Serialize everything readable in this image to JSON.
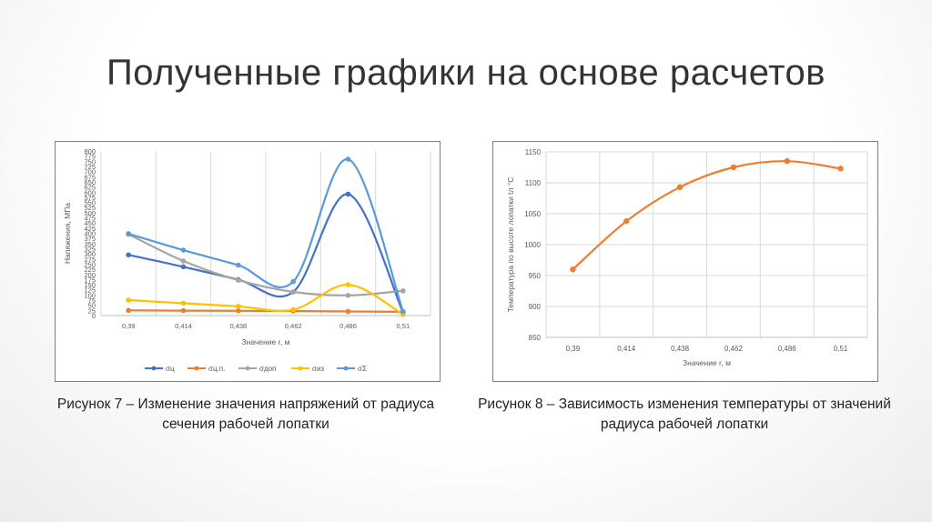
{
  "slide": {
    "title": "Полученные графики на основе расчетов"
  },
  "captions": {
    "fig7": "Рисунок 7 – Изменение значения напряжений от радиуса сечения рабочей лопатки",
    "fig8": "Рисунок 8 – Зависимость изменения температуры от значений радиуса рабочей лопатки"
  },
  "chart_data": [
    {
      "type": "line",
      "title": "",
      "xlabel": "Значение r, м",
      "ylabel": "Напяжения, МПа",
      "categories": [
        "0,39",
        "0,414",
        "0,438",
        "0,462",
        "0,486",
        "0,51"
      ],
      "ylim": [
        0,
        800
      ],
      "yticks": [
        0,
        25,
        50,
        75,
        100,
        125,
        150,
        175,
        200,
        225,
        250,
        275,
        300,
        325,
        350,
        375,
        400,
        425,
        450,
        475,
        500,
        525,
        550,
        575,
        600,
        625,
        650,
        675,
        700,
        725,
        750,
        775,
        800
      ],
      "grid": "vertical",
      "legend": "bottom",
      "smooth": true,
      "series": [
        {
          "name": "σц",
          "color": "#4472C4",
          "values": [
            295,
            237,
            175,
            115,
            590,
            15
          ]
        },
        {
          "name": "σц.п.",
          "color": "#ED7D31",
          "values": [
            25,
            24,
            23,
            22,
            20,
            18
          ]
        },
        {
          "name": "σдоп",
          "color": "#A5A5A5",
          "values": [
            395,
            265,
            172,
            115,
            98,
            120
          ]
        },
        {
          "name": "σиз",
          "color": "#FFC000",
          "values": [
            75,
            60,
            45,
            28,
            150,
            5
          ]
        },
        {
          "name": "σΣ",
          "color": "#5B9BD5",
          "values": [
            398,
            318,
            245,
            165,
            760,
            20
          ]
        }
      ]
    },
    {
      "type": "line",
      "title": "",
      "xlabel": "Значение r, м",
      "ylabel": "Температура по высоте лопатки tл °С",
      "categories": [
        "0,39",
        "0,414",
        "0,438",
        "0,462",
        "0,486",
        "0,51"
      ],
      "ylim": [
        850,
        1150
      ],
      "yticks": [
        850,
        900,
        950,
        1000,
        1050,
        1100,
        1150
      ],
      "grid": "both",
      "legend": "none",
      "smooth": true,
      "series": [
        {
          "name": "",
          "color": "#ED7D31",
          "values": [
            960,
            1038,
            1093,
            1125,
            1135,
            1123
          ]
        }
      ]
    }
  ]
}
